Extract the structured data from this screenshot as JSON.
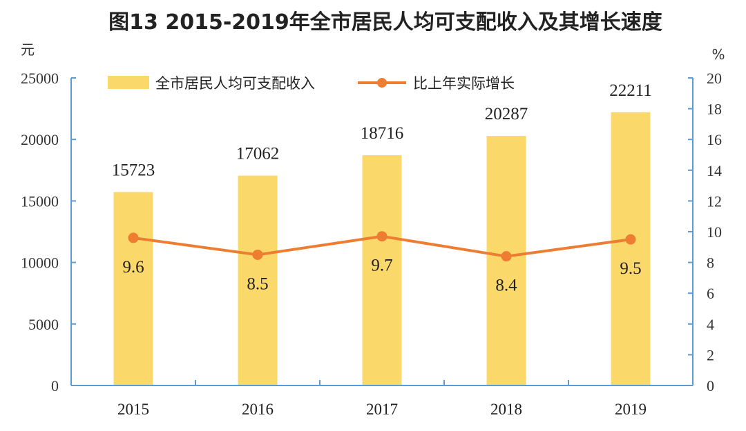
{
  "chart_data": {
    "type": "bar",
    "title": "图13 2015-2019年全市居民人均可支配收入及其增长速度",
    "categories": [
      "2015",
      "2016",
      "2017",
      "2018",
      "2019"
    ],
    "series": [
      {
        "name": "全市居民人均可支配收入",
        "type": "bar",
        "axis": "left",
        "values": [
          15723,
          17062,
          18716,
          20287,
          22211
        ],
        "labels": [
          "15723",
          "17062",
          "18716",
          "20287",
          "22211"
        ]
      },
      {
        "name": "比上年实际增长",
        "type": "line",
        "axis": "right",
        "values": [
          9.6,
          8.5,
          9.7,
          8.4,
          9.5
        ],
        "labels": [
          "9.6",
          "8.5",
          "9.7",
          "8.4",
          "9.5"
        ]
      }
    ],
    "ylabel_left": "元",
    "ylabel_right": "%",
    "ylim_left": [
      0,
      25000
    ],
    "ylim_right": [
      0,
      20
    ],
    "yticks_left": [
      "0",
      "5000",
      "10000",
      "15000",
      "20000",
      "25000"
    ],
    "yticks_right": [
      "0",
      "2",
      "4",
      "6",
      "8",
      "10",
      "12",
      "14",
      "16",
      "18",
      "20"
    ],
    "grid": false,
    "legend_position": "top"
  },
  "colors": {
    "bar": "#FBD86A",
    "line": "#ED7D31",
    "axis": "#5B9BD5"
  }
}
